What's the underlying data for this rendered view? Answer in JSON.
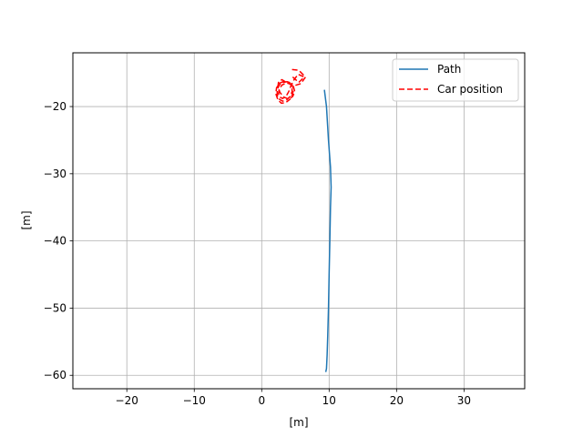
{
  "chart_data": {
    "type": "line",
    "title": "",
    "xlabel": "[m]",
    "ylabel": "[m]",
    "xlim": [
      -28,
      39
    ],
    "ylim": [
      -62,
      -12
    ],
    "xticks": [
      -20,
      -10,
      0,
      10,
      20,
      30
    ],
    "yticks": [
      -60,
      -50,
      -40,
      -30,
      -20
    ],
    "tick_labels_x": [
      "−20",
      "−10",
      "0",
      "10",
      "20",
      "30"
    ],
    "tick_labels_y": [
      "−60",
      "−50",
      "−40",
      "−30",
      "−20"
    ],
    "grid": true,
    "legend_position": "top-right",
    "series": [
      {
        "name": "Path",
        "color": "#1f77b4",
        "style": "solid",
        "x": [
          9.3,
          9.6,
          9.9,
          10.2,
          10.3,
          10.2,
          10.1,
          10.0,
          9.9,
          9.8,
          9.7,
          9.6,
          9.5
        ],
        "y": [
          -17.5,
          -20.0,
          -25.0,
          -29.0,
          -32.0,
          -35.0,
          -40.0,
          -45.0,
          -50.0,
          -54.0,
          -57.0,
          -59.0,
          -59.5
        ]
      },
      {
        "name": "Car position",
        "color": "#ff0000",
        "style": "dashed",
        "x": [
          4.5,
          5.5,
          6.5,
          5.8,
          4.8,
          3.8,
          3.0,
          2.5,
          2.4,
          2.7,
          3.3,
          4.0,
          4.6,
          4.9,
          4.7,
          4.1,
          3.4,
          2.7,
          2.2,
          2.1,
          2.4,
          2.9,
          3.6,
          4.2,
          4.6,
          4.7,
          4.4,
          3.8,
          3.1,
          2.6,
          2.3,
          2.3,
          2.6,
          3.1,
          3.7,
          4.2,
          4.5,
          4.5,
          4.2,
          3.6,
          3.0,
          2.6,
          2.5,
          2.7,
          3.1,
          3.6,
          4.0,
          4.3,
          4.8,
          5.4,
          6.3,
          5.5,
          4.6
        ],
        "y": [
          -14.5,
          -14.6,
          -15.6,
          -16.6,
          -16.9,
          -16.5,
          -16.0,
          -16.3,
          -17.0,
          -17.9,
          -18.6,
          -18.9,
          -18.5,
          -17.8,
          -17.0,
          -16.4,
          -16.2,
          -16.5,
          -17.2,
          -18.1,
          -19.0,
          -19.5,
          -19.4,
          -18.9,
          -18.1,
          -17.3,
          -16.7,
          -16.3,
          -16.4,
          -16.8,
          -17.5,
          -18.3,
          -18.9,
          -19.2,
          -19.0,
          -18.5,
          -17.8,
          -17.1,
          -16.6,
          -16.5,
          -16.8,
          -17.4,
          -18.1,
          -18.6,
          -18.8,
          -18.5,
          -17.8,
          -17.0,
          -16.0,
          -15.2,
          -15.6,
          -16.4,
          -15.6
        ]
      }
    ]
  }
}
